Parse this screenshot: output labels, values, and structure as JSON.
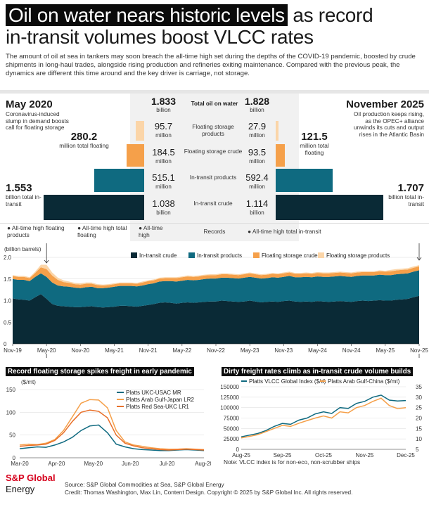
{
  "header": {
    "title_highlight": "Oil on water nears historic levels",
    "title_rest_line1": " as record",
    "title_line2": "in-transit volumes boost VLCC rates",
    "subtitle": "The amount of oil at sea in tankers may soon breach the all-time high set during the depths of the COVID-19 pandemic, boosted by crude shipments in long-haul trades, alongside rising production and refineries exiting maintenance. Compared with the previous peak, the dynamics are different this time around and the key driver is carriage, not storage."
  },
  "compare": {
    "left_period": "May 2020",
    "left_note": "Coronavirus-induced slump in demand boosts call for floating storage",
    "left_floating_value": "280.2",
    "left_floating_unit": "million total floating",
    "left_transit_value": "1.553",
    "left_transit_unit": "billion total in-transit",
    "right_period": "November 2025",
    "right_note": "Oil production keeps rising, as the OPEC+ alliance unwinds its cuts and output rises in the Atlantic Basin",
    "right_floating_value": "121.5",
    "right_floating_unit": "million total floating",
    "right_transit_value": "1.707",
    "right_transit_unit": "billion total in-transit",
    "total_left": "1.833",
    "total_right": "1.828",
    "total_unit": "billion",
    "total_label": "Total oil on water",
    "rows": [
      {
        "label": "Floating storage products",
        "left": "95.7",
        "right": "27.9",
        "unit": "million",
        "color": "#fbd5a8"
      },
      {
        "label": "Floating storage crude",
        "left": "184.5",
        "right": "93.5",
        "unit": "million",
        "color": "#f5a04a"
      },
      {
        "label": "In-transit products",
        "left": "515.1",
        "right": "592.4",
        "unit": "million",
        "color": "#0f6a80"
      },
      {
        "label": "In-transit crude",
        "left": "1.038",
        "right": "1.114",
        "unit": "billion",
        "color": "#0a2a36"
      }
    ],
    "records_label": "Records",
    "records_left": [
      "All-time high floating products",
      "All-time high total floating",
      "All-time high"
    ],
    "records_right": "All-time high total in-transit"
  },
  "chart_data": [
    {
      "type": "area",
      "title": "",
      "ylabel": "(billion barrels)",
      "ylim": [
        0,
        2.0
      ],
      "yticks": [
        "0",
        "0.5",
        "1.0",
        "1.5",
        "2.0"
      ],
      "xticks": [
        "Nov-19",
        "May-20",
        "Nov-20",
        "May-21",
        "Nov-21",
        "May-22",
        "Nov-22",
        "May-23",
        "Nov-23",
        "May-24",
        "Nov-24",
        "May-25",
        "Nov-25"
      ],
      "stacked": true,
      "x_months": [
        "Nov-19",
        "Dec-19",
        "Jan-20",
        "Feb-20",
        "Mar-20",
        "Apr-20",
        "May-20",
        "Jun-20",
        "Jul-20",
        "Aug-20",
        "Sep-20",
        "Oct-20",
        "Nov-20",
        "Dec-20",
        "Jan-21",
        "Feb-21",
        "Mar-21",
        "Apr-21",
        "May-21",
        "Jun-21",
        "Jul-21",
        "Aug-21",
        "Sep-21",
        "Oct-21",
        "Nov-21",
        "Dec-21",
        "Jan-22",
        "Feb-22",
        "Mar-22",
        "Apr-22",
        "May-22",
        "Jun-22",
        "Jul-22",
        "Aug-22",
        "Sep-22",
        "Oct-22",
        "Nov-22",
        "Dec-22",
        "Jan-23",
        "Feb-23",
        "Mar-23",
        "Apr-23",
        "May-23",
        "Jun-23",
        "Jul-23",
        "Aug-23",
        "Sep-23",
        "Oct-23",
        "Nov-23",
        "Dec-23",
        "Jan-24",
        "Feb-24",
        "Mar-24",
        "Apr-24",
        "May-24",
        "Jun-24",
        "Jul-24",
        "Aug-24",
        "Sep-24",
        "Oct-24",
        "Nov-24",
        "Dec-24",
        "Jan-25",
        "Feb-25",
        "Mar-25",
        "Apr-25",
        "May-25",
        "Jun-25",
        "Jul-25",
        "Aug-25",
        "Sep-25",
        "Oct-25",
        "Nov-25"
      ],
      "series": [
        {
          "name": "In-transit crude",
          "color": "#0a2a36",
          "values": [
            1.05,
            1.03,
            1.02,
            1.0,
            1.08,
            1.15,
            1.04,
            0.92,
            0.88,
            0.87,
            0.86,
            0.85,
            0.85,
            0.86,
            0.87,
            0.85,
            0.84,
            0.85,
            0.86,
            0.88,
            0.88,
            0.87,
            0.86,
            0.88,
            0.9,
            0.92,
            0.95,
            0.96,
            0.95,
            0.93,
            0.95,
            0.96,
            0.95,
            0.96,
            0.97,
            0.98,
            0.98,
            1.0,
            0.99,
            0.98,
            0.97,
            0.98,
            1.0,
            0.98,
            0.96,
            0.97,
            0.98,
            0.97,
            0.99,
            1.0,
            0.98,
            0.97,
            0.98,
            0.97,
            0.99,
            0.98,
            0.97,
            0.98,
            0.99,
            0.98,
            0.97,
            0.99,
            1.0,
            0.99,
            1.0,
            1.01,
            1.0,
            1.0,
            1.02,
            1.03,
            1.04,
            1.08,
            1.11
          ]
        },
        {
          "name": "In-transit products",
          "color": "#0f6a80",
          "values": [
            0.45,
            0.45,
            0.46,
            0.45,
            0.47,
            0.48,
            0.51,
            0.5,
            0.47,
            0.46,
            0.46,
            0.45,
            0.44,
            0.45,
            0.45,
            0.44,
            0.45,
            0.45,
            0.46,
            0.46,
            0.46,
            0.47,
            0.47,
            0.47,
            0.48,
            0.48,
            0.49,
            0.49,
            0.5,
            0.51,
            0.51,
            0.52,
            0.52,
            0.52,
            0.53,
            0.53,
            0.53,
            0.53,
            0.54,
            0.54,
            0.54,
            0.55,
            0.55,
            0.55,
            0.55,
            0.55,
            0.56,
            0.56,
            0.56,
            0.57,
            0.56,
            0.57,
            0.57,
            0.57,
            0.57,
            0.57,
            0.58,
            0.58,
            0.58,
            0.58,
            0.58,
            0.58,
            0.58,
            0.59,
            0.58,
            0.59,
            0.59,
            0.59,
            0.59,
            0.59,
            0.59,
            0.59,
            0.59
          ]
        },
        {
          "name": "Floating storage crude",
          "color": "#f5a04a",
          "values": [
            0.07,
            0.07,
            0.07,
            0.07,
            0.09,
            0.14,
            0.18,
            0.16,
            0.13,
            0.1,
            0.09,
            0.08,
            0.08,
            0.08,
            0.07,
            0.07,
            0.06,
            0.06,
            0.06,
            0.06,
            0.06,
            0.06,
            0.06,
            0.07,
            0.07,
            0.07,
            0.07,
            0.07,
            0.07,
            0.08,
            0.08,
            0.08,
            0.08,
            0.08,
            0.08,
            0.08,
            0.08,
            0.08,
            0.08,
            0.08,
            0.08,
            0.08,
            0.08,
            0.08,
            0.08,
            0.08,
            0.08,
            0.08,
            0.08,
            0.08,
            0.08,
            0.08,
            0.08,
            0.08,
            0.08,
            0.08,
            0.08,
            0.08,
            0.08,
            0.08,
            0.08,
            0.08,
            0.08,
            0.08,
            0.08,
            0.08,
            0.08,
            0.09,
            0.09,
            0.09,
            0.09,
            0.09,
            0.09
          ]
        },
        {
          "name": "Floating storage products",
          "color": "#fbd5a8",
          "values": [
            0.02,
            0.02,
            0.02,
            0.02,
            0.03,
            0.06,
            0.1,
            0.07,
            0.05,
            0.04,
            0.03,
            0.03,
            0.03,
            0.03,
            0.03,
            0.02,
            0.02,
            0.02,
            0.02,
            0.02,
            0.02,
            0.02,
            0.02,
            0.02,
            0.02,
            0.02,
            0.02,
            0.02,
            0.02,
            0.02,
            0.02,
            0.02,
            0.02,
            0.02,
            0.02,
            0.02,
            0.02,
            0.02,
            0.02,
            0.02,
            0.02,
            0.02,
            0.02,
            0.02,
            0.02,
            0.02,
            0.02,
            0.02,
            0.02,
            0.02,
            0.02,
            0.02,
            0.02,
            0.02,
            0.02,
            0.02,
            0.02,
            0.02,
            0.02,
            0.02,
            0.02,
            0.02,
            0.02,
            0.02,
            0.02,
            0.02,
            0.02,
            0.03,
            0.03,
            0.03,
            0.03,
            0.03,
            0.03
          ]
        }
      ]
    },
    {
      "type": "line",
      "title": "Record floating storage spikes freight in early pandemic",
      "ylabel": "($/mt)",
      "ylim": [
        0,
        150
      ],
      "yticks": [
        "0",
        "50",
        "100",
        "150"
      ],
      "xticks": [
        "Mar-20",
        "Apr-20",
        "May-20",
        "Jun-20",
        "Jul-20",
        "Aug-20"
      ],
      "x_weeks": [
        "Mar-20 w1",
        "Mar-20 w2",
        "Mar-20 w3",
        "Mar-20 w4",
        "Apr-20 w1",
        "Apr-20 w2",
        "Apr-20 w3",
        "Apr-20 w4",
        "May-20 w1",
        "May-20 w2",
        "May-20 w3",
        "May-20 w4",
        "Jun-20 w1",
        "Jun-20 w2",
        "Jun-20 w3",
        "Jun-20 w4",
        "Jul-20 w1",
        "Jul-20 w2",
        "Jul-20 w3",
        "Jul-20 w4",
        "Aug-20 w1",
        "Aug-20 w2"
      ],
      "series": [
        {
          "name": "Platts UKC-USAC MR",
          "color": "#0f6a80",
          "values": [
            20,
            22,
            24,
            23,
            28,
            35,
            45,
            60,
            70,
            72,
            55,
            30,
            24,
            20,
            18,
            17,
            16,
            16,
            17,
            18,
            17,
            16
          ]
        },
        {
          "name": "Platts Arab Gulf-Japan LR2",
          "color": "#f5a04a",
          "values": [
            28,
            30,
            29,
            32,
            40,
            60,
            90,
            120,
            128,
            127,
            110,
            60,
            35,
            28,
            25,
            22,
            20,
            19,
            19,
            20,
            19,
            18
          ]
        },
        {
          "name": "Platts Red Sea-UKC LR1",
          "color": "#e8702a",
          "values": [
            25,
            27,
            28,
            30,
            38,
            55,
            80,
            100,
            105,
            102,
            88,
            50,
            32,
            26,
            22,
            20,
            18,
            17,
            18,
            19,
            18,
            17
          ]
        }
      ]
    },
    {
      "type": "line",
      "title": "Dirty freight rates climb as in-transit crude volume builds",
      "ylim_left": [
        0,
        150000
      ],
      "ylim_right": [
        5,
        35
      ],
      "yticks_left": [
        "0",
        "25000",
        "50000",
        "75000",
        "100000",
        "125000",
        "150000"
      ],
      "yticks_right": [
        "5",
        "10",
        "15",
        "20",
        "25",
        "30",
        "35"
      ],
      "xticks": [
        "Aug-25",
        "Sep-25",
        "Oct-25",
        "Nov-25",
        "Dec-25"
      ],
      "x_days": [
        "Aug-25 d1",
        "Aug-25 d2",
        "Aug-25 d3",
        "Aug-25 d4",
        "Sep-25 d1",
        "Sep-25 d2",
        "Sep-25 d3",
        "Sep-25 d4",
        "Oct-25 d1",
        "Oct-25 d2",
        "Oct-25 d3",
        "Oct-25 d4",
        "Nov-25 d1",
        "Nov-25 d2",
        "Nov-25 d3",
        "Nov-25 d4",
        "Dec-25 d1",
        "Dec-25 d2",
        "Dec-25 d3",
        "Dec-25 d4",
        "Dec-25 d5"
      ],
      "note": "Note: VLCC index is for non-eco, non-scrubber ships",
      "series": [
        {
          "name": "Platts VLCC Global Index ($/d)",
          "color": "#0f6a80",
          "axis": "left",
          "values": [
            30000,
            34000,
            38000,
            45000,
            55000,
            62000,
            60000,
            70000,
            75000,
            85000,
            90000,
            86000,
            100000,
            98000,
            110000,
            115000,
            125000,
            130000,
            118000,
            116000,
            117000
          ]
        },
        {
          "name": "Platts Arab Gulf-China ($/mt)",
          "color": "#f5a04a",
          "axis": "right",
          "values": [
            10.5,
            11.2,
            12,
            13.5,
            15,
            16.5,
            16,
            17.5,
            18.8,
            20,
            21,
            20,
            23,
            22.5,
            25,
            26,
            28,
            29.5,
            26,
            24.5,
            25
          ]
        }
      ]
    }
  ],
  "footer": {
    "brand_top": "S&P Global",
    "brand_bottom": "Energy",
    "source": "Source: S&P Global Commodities at Sea, S&P Global Energy",
    "credit": "Credit: Thomas Washington, Max Lin, Content Design.  Copyright © 2025 by S&P Global Inc. All rights reserved."
  }
}
